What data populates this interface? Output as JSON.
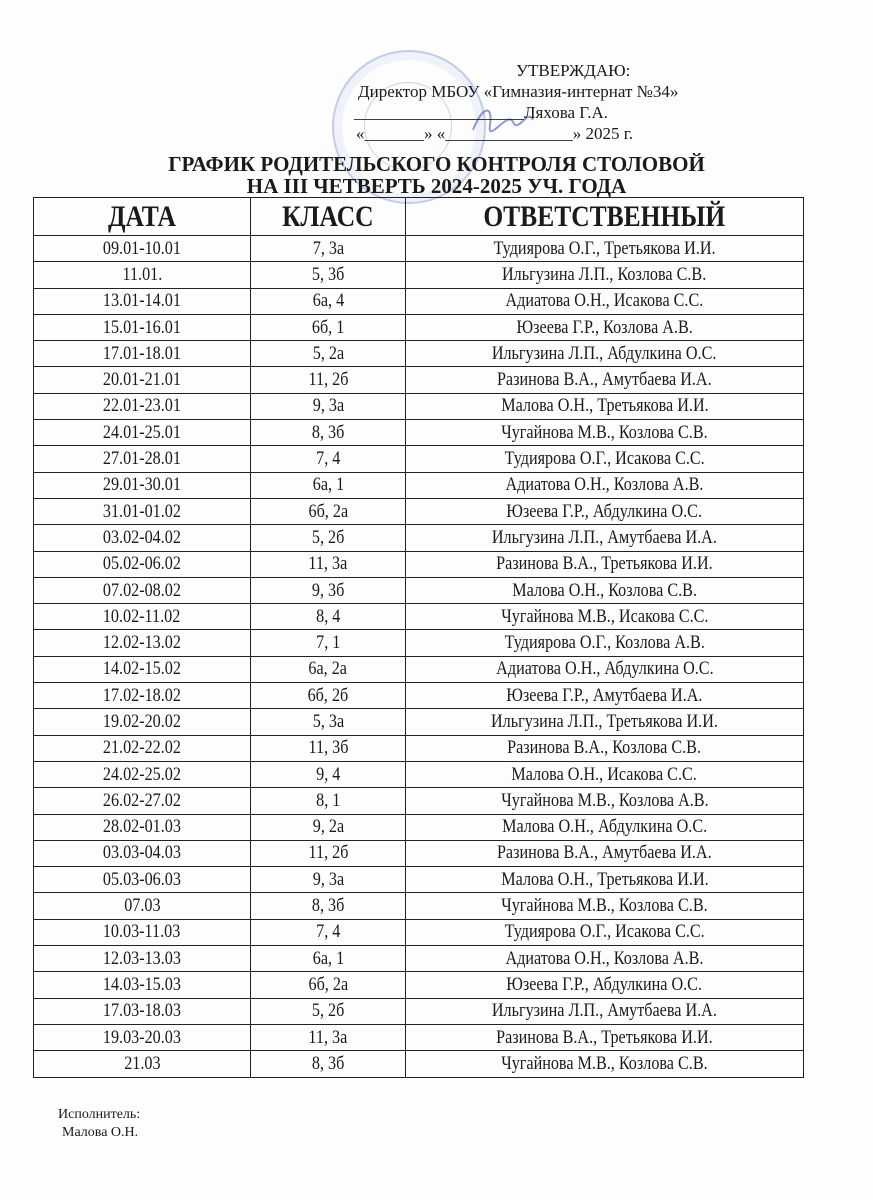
{
  "approval": {
    "line1": "УТВЕРЖДАЮ:",
    "line2": "Директор МБОУ «Гимназия-интернат №34»",
    "line3": "____________________Ляхова Г.А.",
    "line4": "«_______» «_______________» 2025 г."
  },
  "stamp_text": "«Гимназия-интернат №34»",
  "title": {
    "line1": "ГРАФИК РОДИТЕЛЬСКОГО КОНТРОЛЯ СТОЛОВОЙ",
    "line2": "НА III ЧЕТВЕРТЬ 2024-2025 УЧ. ГОДА"
  },
  "table": {
    "headers": [
      "ДАТА",
      "КЛАСС",
      "ОТВЕТСТВЕННЫЙ"
    ],
    "rows": [
      [
        "09.01-10.01",
        "7, 3а",
        "Тудиярова О.Г., Третьякова И.И."
      ],
      [
        "11.01.",
        "5, 3б",
        "Ильгузина Л.П., Козлова С.В."
      ],
      [
        "13.01-14.01",
        "6а, 4",
        "Адиатова О.Н., Исакова С.С."
      ],
      [
        "15.01-16.01",
        "6б, 1",
        "Юзеева Г.Р., Козлова А.В."
      ],
      [
        "17.01-18.01",
        "5, 2а",
        "Ильгузина Л.П., Абдулкина О.С."
      ],
      [
        "20.01-21.01",
        "11, 2б",
        "Разинова В.А., Амутбаева И.А."
      ],
      [
        "22.01-23.01",
        "9, 3а",
        "Малова О.Н., Третьякова И.И."
      ],
      [
        "24.01-25.01",
        "8, 3б",
        "Чугайнова М.В., Козлова С.В."
      ],
      [
        "27.01-28.01",
        "7, 4",
        "Тудиярова О.Г., Исакова С.С."
      ],
      [
        "29.01-30.01",
        "6а, 1",
        "Адиатова О.Н., Козлова А.В."
      ],
      [
        "31.01-01.02",
        "6б, 2а",
        "Юзеева Г.Р., Абдулкина О.С."
      ],
      [
        "03.02-04.02",
        "5, 2б",
        "Ильгузина Л.П., Амутбаева И.А."
      ],
      [
        "05.02-06.02",
        "11, 3а",
        "Разинова В.А., Третьякова И.И."
      ],
      [
        "07.02-08.02",
        "9, 3б",
        "Малова О.Н., Козлова С.В."
      ],
      [
        "10.02-11.02",
        "8, 4",
        "Чугайнова М.В., Исакова С.С."
      ],
      [
        "12.02-13.02",
        "7, 1",
        "Тудиярова О.Г., Козлова А.В."
      ],
      [
        "14.02-15.02",
        "6а, 2а",
        "Адиатова О.Н., Абдулкина О.С."
      ],
      [
        "17.02-18.02",
        "6б, 2б",
        "Юзеева Г.Р., Амутбаева И.А."
      ],
      [
        "19.02-20.02",
        "5, 3а",
        "Ильгузина Л.П., Третьякова И.И."
      ],
      [
        "21.02-22.02",
        "11, 3б",
        "Разинова В.А., Козлова С.В."
      ],
      [
        "24.02-25.02",
        "9, 4",
        "Малова О.Н., Исакова С.С."
      ],
      [
        "26.02-27.02",
        "8, 1",
        "Чугайнова М.В., Козлова А.В."
      ],
      [
        "28.02-01.03",
        "9, 2а",
        "Малова О.Н., Абдулкина О.С."
      ],
      [
        "03.03-04.03",
        "11, 2б",
        "Разинова В.А., Амутбаева И.А."
      ],
      [
        "05.03-06.03",
        "9, 3а",
        "Малова О.Н., Третьякова И.И."
      ],
      [
        "07.03",
        "8, 3б",
        "Чугайнова М.В., Козлова С.В."
      ],
      [
        "10.03-11.03",
        "7, 4",
        "Тудиярова О.Г., Исакова С.С."
      ],
      [
        "12.03-13.03",
        "6а, 1",
        "Адиатова О.Н., Козлова А.В."
      ],
      [
        "14.03-15.03",
        "6б, 2а",
        "Юзеева Г.Р., Абдулкина О.С."
      ],
      [
        "17.03-18.03",
        "5, 2б",
        "Ильгузина Л.П., Амутбаева И.А."
      ],
      [
        "19.03-20.03",
        "11, 3а",
        "Разинова В.А., Третьякова И.И."
      ],
      [
        "21.03",
        "8, 3б",
        "Чугайнова М.В., Козлова С.В."
      ]
    ]
  },
  "footer": {
    "label": "Исполнитель:",
    "name": "Малова О.Н."
  }
}
